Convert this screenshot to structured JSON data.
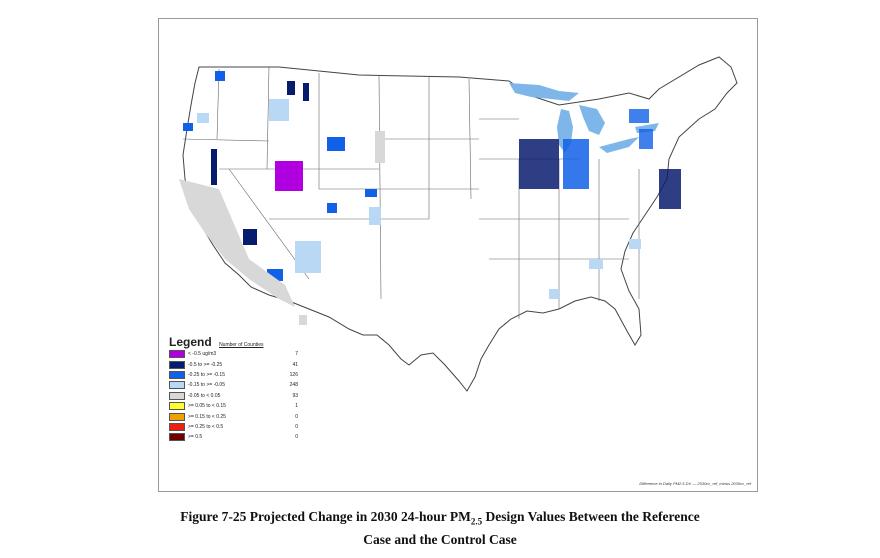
{
  "legend": {
    "title": "Legend",
    "subtitle": "Number of Counties",
    "items": [
      {
        "label": "< -0.5 ug/m3",
        "count": "7",
        "color": "#b000e0"
      },
      {
        "label": "-0.5 to >= -0.25",
        "count": "41",
        "color": "#081c6e"
      },
      {
        "label": "-0.25 to >= -0.15",
        "count": "126",
        "color": "#1060e8"
      },
      {
        "label": "-0.15 to >= -0.05",
        "count": "248",
        "color": "#b8d8f4"
      },
      {
        "label": "-0.05 to < 0.05",
        "count": "93",
        "color": "#d8d8d8"
      },
      {
        "label": ">= 0.05 to < 0.15",
        "count": "1",
        "color": "#ffff30"
      },
      {
        "label": ">= 0.15 to < 0.25",
        "count": "0",
        "color": "#f0a000"
      },
      {
        "label": ">= 0.25 to < 0.5",
        "count": "0",
        "color": "#f02010"
      },
      {
        "label": ">= 0.5",
        "count": "0",
        "color": "#700000"
      }
    ]
  },
  "map_note": "Difference in Daily PM2.5 DV — 2030cc_ref_minus 2030cc_ref",
  "caption": {
    "line1_prefix": "Figure 7-25 Projected Change in 2030 24-hour PM",
    "line1_sub": "2.5",
    "line1_suffix": " Design Values Between the Reference",
    "line2": "Case and the Control Case"
  },
  "colors": {
    "water": "#7fb6ea",
    "outline": "#444444",
    "land": "#ffffff"
  }
}
